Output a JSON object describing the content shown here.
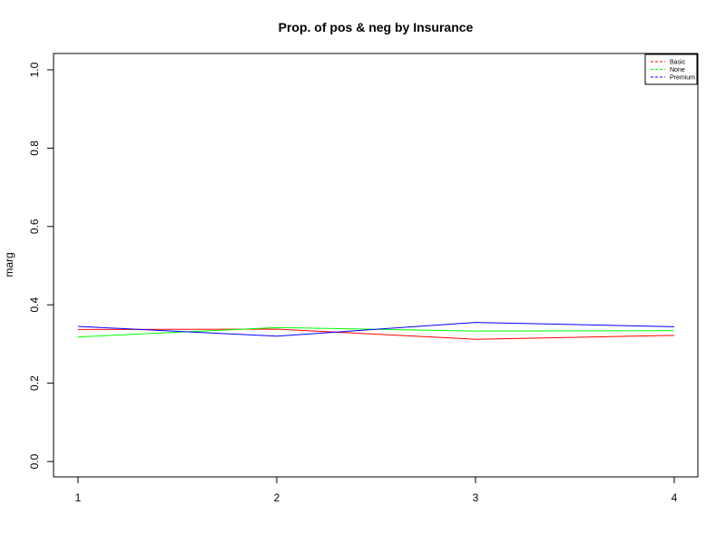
{
  "chart_data": {
    "type": "line",
    "title": "Prop. of pos & neg by Insurance",
    "xlabel": "",
    "ylabel": "marg",
    "x": [
      1,
      2,
      3,
      4
    ],
    "xlim": [
      1,
      4
    ],
    "ylim": [
      0,
      1
    ],
    "x_ticks": [
      "1",
      "2",
      "3",
      "4"
    ],
    "y_ticks": [
      "0.0",
      "0.2",
      "0.4",
      "0.6",
      "0.8",
      "1.0"
    ],
    "grid": false,
    "legend_position": "top-right",
    "series": [
      {
        "name": "Basic",
        "color": "#FF0000",
        "values": [
          0.337,
          0.338,
          0.312,
          0.322
        ]
      },
      {
        "name": "None",
        "color": "#00FF00",
        "values": [
          0.318,
          0.342,
          0.333,
          0.334
        ]
      },
      {
        "name": "Premium",
        "color": "#0000FF",
        "values": [
          0.345,
          0.32,
          0.355,
          0.344
        ]
      }
    ]
  }
}
